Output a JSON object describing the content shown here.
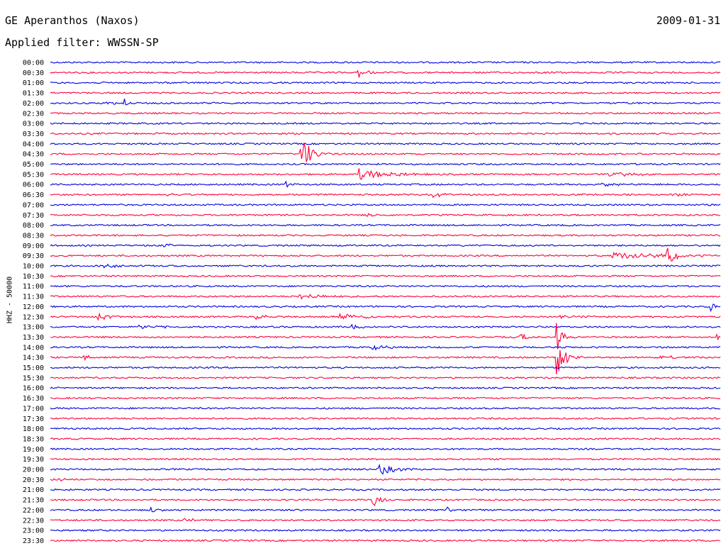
{
  "header": {
    "station": "GE Aperanthos (Naxos)",
    "date": "2009-01-31",
    "filter": "Applied filter: WWSSN-SP"
  },
  "chart_data": {
    "type": "line",
    "ylabel": "HHZ - 50000",
    "colors": {
      "even_rows": "#0000e0",
      "odd_rows": "#ff003c"
    },
    "rows": [
      "00:00",
      "00:30",
      "01:00",
      "01:30",
      "02:00",
      "02:30",
      "03:00",
      "03:30",
      "04:00",
      "04:30",
      "05:00",
      "05:30",
      "06:00",
      "06:30",
      "07:00",
      "07:30",
      "08:00",
      "08:30",
      "09:00",
      "09:30",
      "10:00",
      "10:30",
      "11:00",
      "11:30",
      "12:00",
      "12:30",
      "13:00",
      "13:30",
      "14:00",
      "14:30",
      "15:00",
      "15:30",
      "16:00",
      "16:30",
      "17:00",
      "17:30",
      "18:00",
      "18:30",
      "19:00",
      "19:30",
      "20:00",
      "20:30",
      "21:00",
      "21:30",
      "22:00",
      "22:30",
      "23:00",
      "23:30"
    ],
    "events": [
      {
        "row": "00:30",
        "t": 0.46,
        "amp": 9,
        "dur": 0.01
      },
      {
        "row": "02:00",
        "t": 0.085,
        "amp": 6,
        "dur": 0.012
      },
      {
        "row": "02:00",
        "t": 0.11,
        "amp": 7,
        "dur": 0.006
      },
      {
        "row": "04:30",
        "t": 0.375,
        "amp": 28,
        "dur": 0.012
      },
      {
        "row": "05:30",
        "t": 0.46,
        "amp": 8,
        "dur": 0.04
      },
      {
        "row": "05:30",
        "t": 0.835,
        "amp": 4,
        "dur": 0.03
      },
      {
        "row": "06:00",
        "t": 0.35,
        "amp": 5,
        "dur": 0.01
      },
      {
        "row": "06:00",
        "t": 0.82,
        "amp": 4,
        "dur": 0.02
      },
      {
        "row": "06:30",
        "t": 0.17,
        "amp": 4,
        "dur": 0.015
      },
      {
        "row": "06:30",
        "t": 0.57,
        "amp": 6,
        "dur": 0.01
      },
      {
        "row": "06:30",
        "t": 0.93,
        "amp": 3,
        "dur": 0.02
      },
      {
        "row": "07:30",
        "t": 0.47,
        "amp": 3,
        "dur": 0.02
      },
      {
        "row": "09:00",
        "t": 0.17,
        "amp": 4,
        "dur": 0.01
      },
      {
        "row": "09:30",
        "t": 0.84,
        "amp": 6,
        "dur": 0.06
      },
      {
        "row": "09:30",
        "t": 0.92,
        "amp": 20,
        "dur": 0.012
      },
      {
        "row": "10:00",
        "t": 0.08,
        "amp": 4,
        "dur": 0.015
      },
      {
        "row": "11:30",
        "t": 0.37,
        "amp": 6,
        "dur": 0.025
      },
      {
        "row": "12:00",
        "t": 0.985,
        "amp": 7,
        "dur": 0.008
      },
      {
        "row": "12:30",
        "t": 0.07,
        "amp": 7,
        "dur": 0.02
      },
      {
        "row": "12:30",
        "t": 0.305,
        "amp": 6,
        "dur": 0.01
      },
      {
        "row": "12:30",
        "t": 0.43,
        "amp": 3,
        "dur": 0.05
      },
      {
        "row": "12:30",
        "t": 0.76,
        "amp": 3,
        "dur": 0.02
      },
      {
        "row": "13:00",
        "t": 0.13,
        "amp": 3,
        "dur": 0.03
      },
      {
        "row": "13:00",
        "t": 0.45,
        "amp": 5,
        "dur": 0.01
      },
      {
        "row": "13:30",
        "t": 0.7,
        "amp": 5,
        "dur": 0.02
      },
      {
        "row": "13:30",
        "t": 0.755,
        "amp": 40,
        "dur": 0.006
      },
      {
        "row": "13:30",
        "t": 0.99,
        "amp": 5,
        "dur": 0.01
      },
      {
        "row": "14:00",
        "t": 0.48,
        "amp": 4,
        "dur": 0.02
      },
      {
        "row": "14:30",
        "t": 0.755,
        "amp": 28,
        "dur": 0.012
      },
      {
        "row": "14:30",
        "t": 0.05,
        "amp": 4,
        "dur": 0.01
      },
      {
        "row": "14:30",
        "t": 0.91,
        "amp": 3,
        "dur": 0.02
      },
      {
        "row": "20:00",
        "t": 0.49,
        "amp": 9,
        "dur": 0.02
      },
      {
        "row": "20:30",
        "t": 0.012,
        "amp": 3,
        "dur": 0.01
      },
      {
        "row": "21:30",
        "t": 0.48,
        "amp": 12,
        "dur": 0.012
      },
      {
        "row": "22:00",
        "t": 0.15,
        "amp": 6,
        "dur": 0.01
      },
      {
        "row": "22:00",
        "t": 0.59,
        "amp": 6,
        "dur": 0.008
      },
      {
        "row": "22:30",
        "t": 0.2,
        "amp": 5,
        "dur": 0.012
      }
    ]
  }
}
